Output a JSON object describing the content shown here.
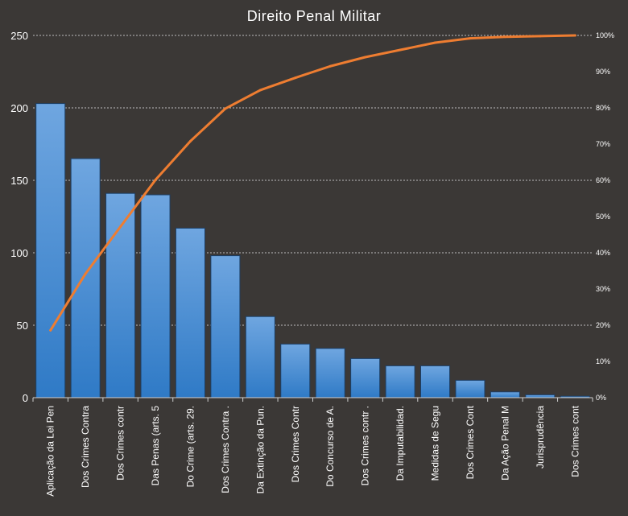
{
  "chart_data": {
    "type": "bar",
    "title": "Direito Penal Militar",
    "categories": [
      "Aplicação da Lei Pen",
      "Dos Crimes Contra",
      "Dos Crimes contr",
      "Das Penas (arts. 5",
      "Do Crime (arts. 29.",
      "Dos Crimes Contra .",
      "Da Extinção da Pun.",
      "Dos Crimes Contr",
      "Do Concurso de A.",
      "Dos Crimes contr .",
      "Da Imputabilidad.",
      "Medidas de Segu",
      "Dos Crimes Cont",
      "Da Ação Penal M",
      "Jurisprudência",
      "Dos Crimes cont"
    ],
    "series": [
      {
        "type": "bar",
        "axis": "left",
        "values": [
          203,
          165,
          141,
          140,
          117,
          98,
          56,
          37,
          34,
          27,
          22,
          22,
          12,
          4,
          2,
          1
        ]
      },
      {
        "type": "line",
        "axis": "right",
        "values": [
          18.6,
          34.2,
          47.2,
          60.1,
          70.8,
          79.8,
          84.9,
          88.3,
          91.5,
          94.0,
          96.0,
          98.0,
          99.2,
          99.6,
          99.8,
          100
        ]
      }
    ],
    "ylim": [
      0,
      250
    ],
    "yticks": [
      0,
      50,
      100,
      150,
      200,
      250
    ],
    "y2lim": [
      0,
      100
    ],
    "y2ticks": [
      "0%",
      "10%",
      "20%",
      "30%",
      "40%",
      "50%",
      "60%",
      "70%",
      "80%",
      "90%",
      "100%"
    ],
    "grid": true,
    "legend": "none",
    "colors": {
      "background": "#3b3836",
      "bar_top": "#6fa6e0",
      "bar_bottom": "#2f7ac6",
      "bar_edge": "#1c3f66",
      "line": "#ee7d31",
      "grid": "#bdbdbd",
      "text": "#ffffff"
    }
  }
}
